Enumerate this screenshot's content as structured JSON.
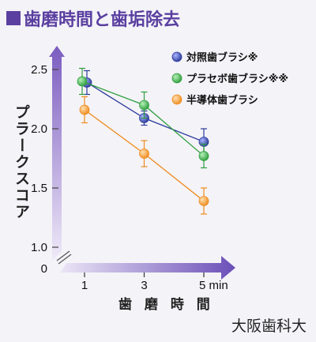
{
  "title": "歯磨時間と歯垢除去",
  "source": "大阪歯科大",
  "chart_data": {
    "type": "line",
    "ylabel": "プラークスコア",
    "xlabel": "歯 磨 時 間",
    "x": [
      1,
      3,
      5
    ],
    "x_tick_labels": [
      "1",
      "3",
      "5 min"
    ],
    "y_tick_labels": [
      "2.5",
      "2.0",
      "1.5",
      "1.0",
      "0"
    ],
    "ylim_display": [
      1.0,
      2.5
    ],
    "axis_break": true,
    "grid": false,
    "legend_position": "top-right",
    "series": [
      {
        "name": "対照歯ブラシ※",
        "color": "#2b3a99",
        "values": [
          2.39,
          2.09,
          1.89
        ],
        "errors": [
          0.1,
          0.06,
          0.11
        ]
      },
      {
        "name": "プラセボ歯ブラシ※※",
        "color": "#2e9e3e",
        "values": [
          2.4,
          2.2,
          1.77
        ],
        "errors": [
          0.11,
          0.11,
          0.1
        ]
      },
      {
        "name": "半導体歯ブラシ",
        "color": "#ef8b1e",
        "values": [
          2.16,
          1.79,
          1.39
        ],
        "errors": [
          0.11,
          0.11,
          0.11
        ]
      }
    ]
  }
}
